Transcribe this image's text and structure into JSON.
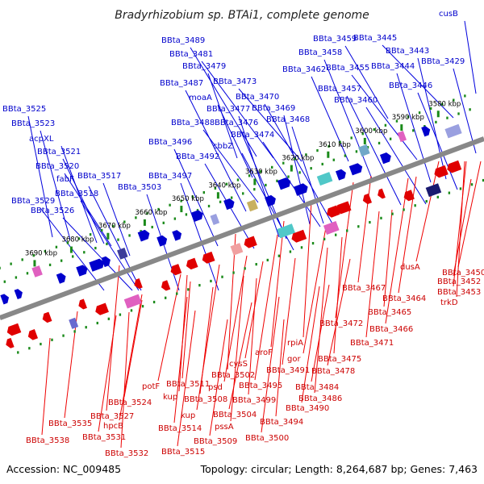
{
  "title": "Bradyrhizobium sp. BTAi1, complete genome",
  "footer": {
    "accession": "Accession: NC_009485",
    "topology": "Topology: circular; Length: 8,264,687 bp; Genes: 7,463"
  },
  "colors": {
    "forward_strand": "#0000cc",
    "reverse_strand": "#e00000",
    "backbone": "#888888",
    "tick": "#1a8a1a"
  },
  "kbp_ticks": [
    "3580 kbp",
    "3590 kbp",
    "3600 kbp",
    "3610 kbp",
    "3620 kbp",
    "3630 kbp",
    "3640 kbp",
    "3650 kbp",
    "3660 kbp",
    "3670 kbp",
    "3680 kbp",
    "3690 kbp"
  ],
  "top_labels": [
    "BBta_3525",
    "BBta_3523",
    "acpXL",
    "BBta_3521",
    "BBta_3520",
    "fabF",
    "BBta_3518",
    "BBta_3529",
    "BBta_3526",
    "BBta_3517",
    "BBta_3503",
    "BBta_3497",
    "BBta_3496",
    "BBta_3492",
    "BBta_3488",
    "BBta_3487",
    "BBta_3489",
    "BBta_3481",
    "BBta_3479",
    "moaA",
    "BBta_3477",
    "BBta_3476",
    "cbbZ",
    "BBta_3474",
    "BBta_3473",
    "BBta_3470",
    "BBta_3469",
    "BBta_3468",
    "BBta_3462",
    "BBta_3459",
    "BBta_3458",
    "BBta_3457",
    "BBta_3460",
    "BBta_3455",
    "BBta_3445",
    "BBta_3443",
    "BBta_3444",
    "BBta_3446",
    "BBta_3429",
    "cusB"
  ],
  "bottom_labels": [
    "BBta_3538",
    "BBta_3535",
    "BBta_3531",
    "hpcB",
    "BBta_3532",
    "BBta_3527",
    "BBta_3524",
    "potF",
    "kup",
    "BBta_3514",
    "BBta_3515",
    "kup",
    "BBta_3511",
    "BBta_3508",
    "BBta_3509",
    "psd",
    "BBta_3502",
    "pssA",
    "cysS",
    "BBta_3504",
    "BBta_3499",
    "aroF",
    "BBta_3500",
    "BBta_3495",
    "BBta_3494",
    "BBta_3491",
    "BBta_3490",
    "gor",
    "rpiA",
    "BBta_3486",
    "BBta_3484",
    "BBta_3478",
    "BBta_3475",
    "BBta_3471",
    "BBta_3472",
    "BBta_3466",
    "BBta_3465",
    "BBta_3467",
    "BBta_3464",
    "dusA",
    "trkD",
    "BBta_3453",
    "BBta_3452",
    "BBta_3450"
  ]
}
